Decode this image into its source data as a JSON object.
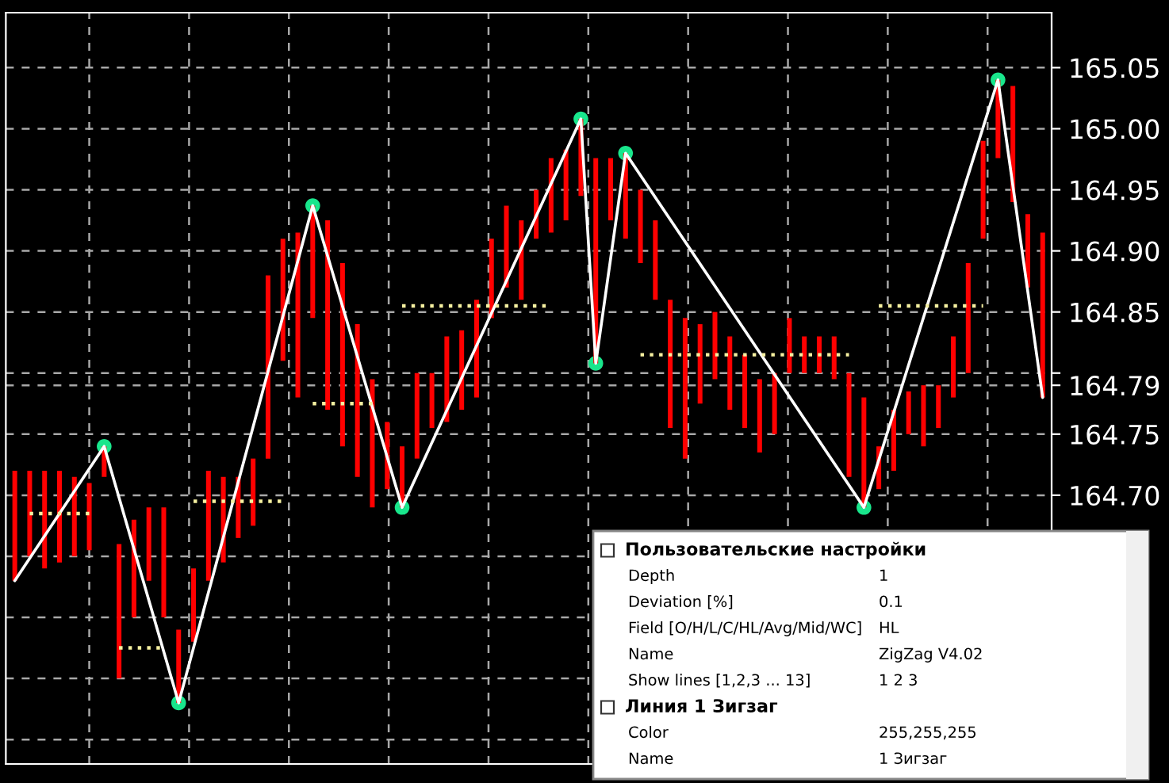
{
  "chart_data": {
    "type": "bar",
    "categories": [
      null,
      null,
      null,
      null,
      null,
      null,
      null,
      null,
      null,
      null,
      null,
      null,
      null,
      null,
      null,
      null,
      null,
      null,
      null,
      null,
      null,
      null,
      null,
      null,
      null,
      null,
      null,
      null,
      null,
      null,
      null,
      null,
      null,
      null,
      null,
      null,
      null,
      null,
      null,
      null,
      null,
      null,
      null,
      null,
      null,
      null,
      null,
      null,
      null,
      null,
      null,
      null,
      null,
      null,
      null,
      null,
      null,
      null,
      null,
      null,
      null,
      null,
      null,
      null,
      null,
      null,
      null,
      null,
      null,
      null
    ],
    "base": [
      164.63,
      164.65,
      164.64,
      164.645,
      164.65,
      164.655,
      164.715,
      164.55,
      164.6,
      164.63,
      164.6,
      164.53,
      164.58,
      164.63,
      164.645,
      164.665,
      164.675,
      164.73,
      164.81,
      164.78,
      164.845,
      164.77,
      164.74,
      164.715,
      164.69,
      164.705,
      164.69,
      164.73,
      164.755,
      164.76,
      164.77,
      164.78,
      164.845,
      164.87,
      164.86,
      164.91,
      164.915,
      164.925,
      164.945,
      164.808,
      164.925,
      164.91,
      164.89,
      164.86,
      164.755,
      164.73,
      164.775,
      164.795,
      164.77,
      164.755,
      164.735,
      164.75,
      164.8,
      164.8,
      164.8,
      164.795,
      164.715,
      164.69,
      164.705,
      164.72,
      164.75,
      164.74,
      164.755,
      164.78,
      164.8,
      164.91,
      164.976,
      164.94,
      164.87,
      164.78
    ],
    "color": "#ff0000",
    "values": [
      0.09,
      0.07,
      0.08,
      0.075,
      0.065,
      0.055,
      0.025,
      0.11,
      0.08,
      0.06,
      0.09,
      0.06,
      0.06,
      0.09,
      0.07,
      0.05,
      0.055,
      0.15,
      0.1,
      0.135,
      0.092,
      0.155,
      0.15,
      0.125,
      0.105,
      0.055,
      0.05,
      0.07,
      0.045,
      0.07,
      0.065,
      0.08,
      0.065,
      0.067,
      0.065,
      0.04,
      0.061,
      0.058,
      0.063,
      0.168,
      0.051,
      0.07,
      0.06,
      0.065,
      0.105,
      0.115,
      0.065,
      0.055,
      0.06,
      0.06,
      0.06,
      0.05,
      0.045,
      0.03,
      0.03,
      0.035,
      0.085,
      0.09,
      0.035,
      0.05,
      0.035,
      0.05,
      0.035,
      0.05,
      0.09,
      0.08,
      0.064,
      0.095,
      0.06,
      0.135
    ],
    "series": [
      {
        "type": "line",
        "color": "#f5f0a0",
        "line_style": "dotted",
        "values": [
          null,
          164.685,
          164.685,
          164.685,
          164.685,
          164.685,
          null,
          164.575,
          164.575,
          164.575,
          164.575,
          null,
          164.695,
          164.695,
          164.695,
          164.695,
          164.695,
          164.695,
          164.695,
          null,
          164.775,
          164.775,
          164.775,
          164.775,
          164.775,
          null,
          164.855,
          164.855,
          164.855,
          164.855,
          164.855,
          164.855,
          164.855,
          164.855,
          164.855,
          164.855,
          164.855,
          null,
          null,
          null,
          null,
          null,
          164.815,
          164.815,
          164.815,
          164.815,
          164.815,
          164.815,
          164.815,
          164.815,
          164.815,
          164.815,
          164.815,
          164.815,
          164.815,
          164.815,
          164.815,
          null,
          164.855,
          164.855,
          164.855,
          164.855,
          164.855,
          164.855,
          164.855,
          164.855,
          null,
          null,
          null,
          null
        ]
      },
      {
        "type": "line",
        "color": "#ffffff",
        "line_style": "solid",
        "values": [
          164.63,
          null,
          null,
          null,
          null,
          null,
          164.74,
          null,
          null,
          null,
          null,
          164.53,
          null,
          null,
          null,
          null,
          null,
          null,
          null,
          null,
          164.937,
          null,
          null,
          null,
          null,
          null,
          164.69,
          null,
          null,
          null,
          null,
          null,
          null,
          null,
          null,
          null,
          null,
          null,
          165.008,
          164.808,
          null,
          164.98,
          null,
          null,
          null,
          null,
          null,
          null,
          null,
          null,
          null,
          null,
          null,
          null,
          null,
          null,
          null,
          164.69,
          null,
          null,
          null,
          null,
          null,
          null,
          null,
          null,
          165.04,
          null,
          null,
          164.78
        ]
      },
      {
        "type": "scatter",
        "color": "#19e68c",
        "marker": "circle",
        "values": [
          null,
          null,
          null,
          null,
          null,
          null,
          164.74,
          null,
          null,
          null,
          null,
          164.53,
          null,
          null,
          null,
          null,
          null,
          null,
          null,
          null,
          164.937,
          null,
          null,
          null,
          null,
          null,
          164.69,
          null,
          null,
          null,
          null,
          null,
          null,
          null,
          null,
          null,
          null,
          null,
          165.008,
          164.808,
          null,
          164.98,
          null,
          null,
          null,
          null,
          null,
          null,
          null,
          null,
          null,
          null,
          null,
          null,
          null,
          null,
          null,
          164.69,
          null,
          null,
          null,
          null,
          null,
          null,
          null,
          null,
          165.04,
          null,
          null,
          null
        ]
      }
    ],
    "ylim": [
      164.48,
      165.095
    ],
    "yticks": [
      {
        "value": 164.5,
        "label": null
      },
      {
        "value": 164.55,
        "label": null
      },
      {
        "value": 164.6,
        "label": null
      },
      {
        "value": 164.65,
        "label": null
      },
      {
        "value": 164.7,
        "label": "164.70"
      },
      {
        "value": 164.75,
        "label": "164.75"
      },
      {
        "value": 164.79,
        "label": "164.79"
      },
      {
        "value": 164.8,
        "label": null
      },
      {
        "value": 164.85,
        "label": "164.85"
      },
      {
        "value": 164.9,
        "label": "164.90"
      },
      {
        "value": 164.95,
        "label": "164.95"
      },
      {
        "value": 165.0,
        "label": "165.00"
      },
      {
        "value": 165.05,
        "label": "165.05"
      }
    ],
    "tick_labels": "y",
    "grid": true,
    "annotations": [
      "Пользовательские настройки",
      "Depth",
      "1",
      "Deviation [%]",
      "0.1",
      "Field [O/H/L/C/HL/Avg/Mid/WC]",
      "HL",
      "Name",
      "ZigZag V4.02",
      "Show lines [1,2,3 ... 13]",
      "1 2 3",
      "Линия 1 Зигзаг",
      "Color",
      "255,255,255",
      "Name",
      "1 Зигзаг"
    ]
  }
}
